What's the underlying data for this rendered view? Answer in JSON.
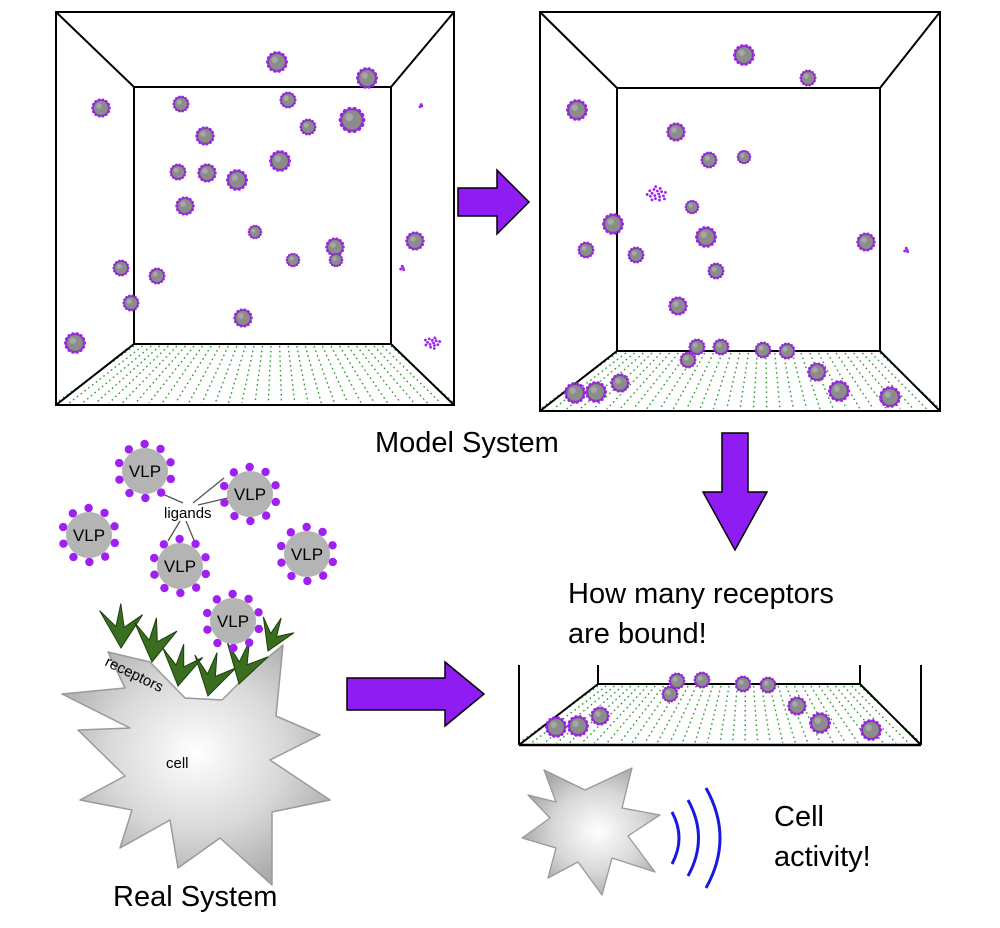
{
  "labels": {
    "model_system": "Model System",
    "real_system": "Real System",
    "bound_question_line1": "How many receptors",
    "bound_question_line2": "are bound!",
    "cell_activity_line1": "Cell",
    "cell_activity_line2": "activity!",
    "ligands": "ligands",
    "receptors": "receptors",
    "cell": "cell",
    "vlp": "VLP"
  },
  "colors": {
    "ligand_purple": "#a020f0",
    "arrow_purple": "#8f1cf2",
    "vlp_gray": "#b4b4b4",
    "receptor_green": "#3a6e1f",
    "floor_grid_green": "#2e9c2e",
    "cell_gray": "#d3d3d3",
    "signal_blue": "#1a1adc",
    "outline_black": "#000000"
  },
  "icons": {
    "flow_arrow": "purple-block-arrow",
    "signal": "blue-signal-arcs"
  }
}
